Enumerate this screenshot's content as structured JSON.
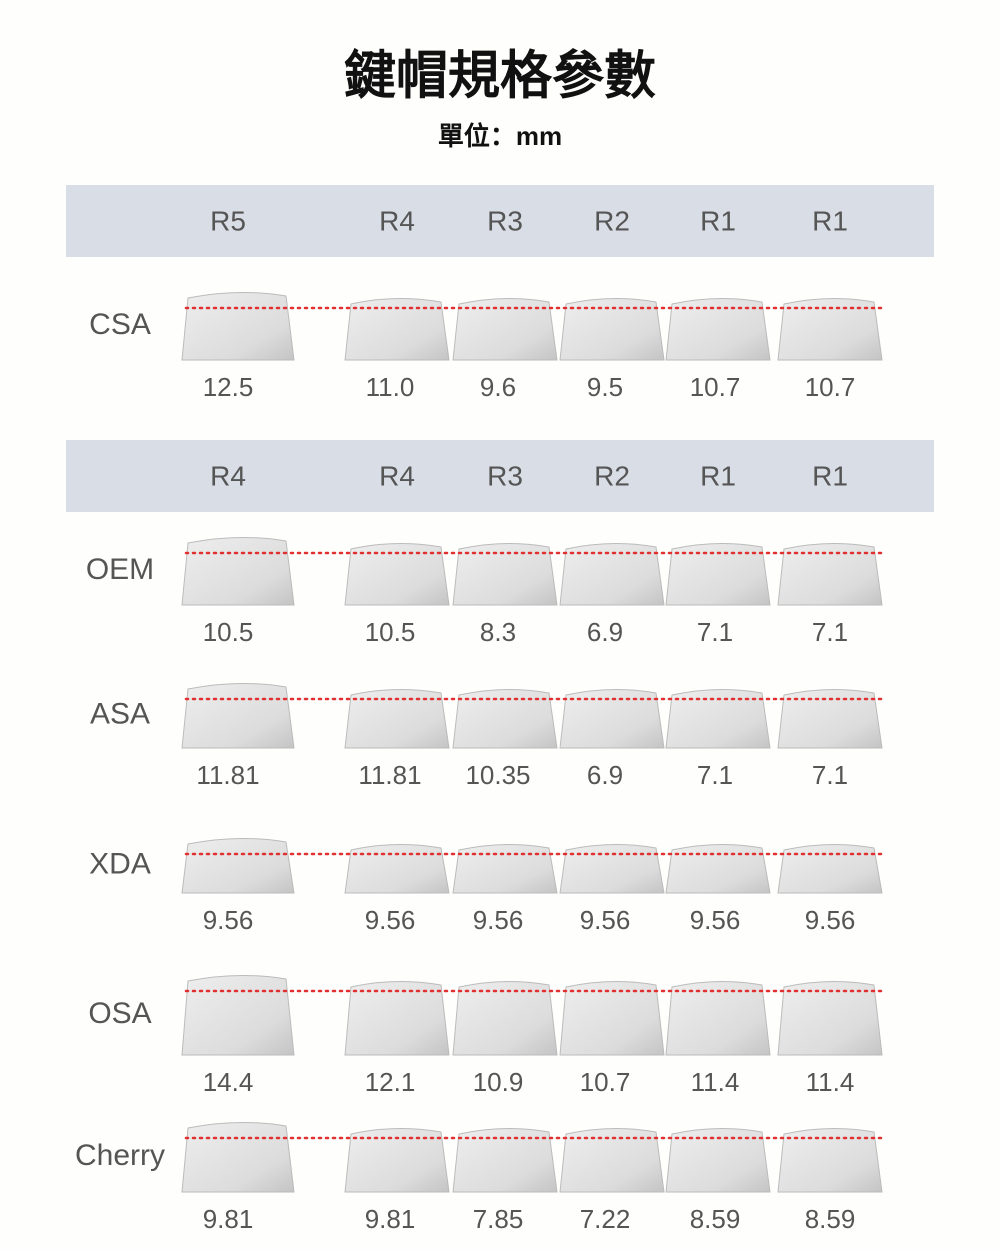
{
  "header": {
    "title": "鍵帽規格參數",
    "subtitle": "單位：mm"
  },
  "table": {
    "sections": [
      {
        "rows_label": [
          "R5",
          "R4",
          "R3",
          "R2",
          "R1",
          "R1"
        ],
        "profiles": [
          {
            "name": "CSA",
            "values": [
              "12.5",
              "11.0",
              "9.6",
              "9.5",
              "10.7",
              "10.7"
            ]
          }
        ]
      },
      {
        "rows_label": [
          "R4",
          "R4",
          "R3",
          "R2",
          "R1",
          "R1"
        ],
        "profiles": [
          {
            "name": "OEM",
            "values": [
              "10.5",
              "10.5",
              "8.3",
              "6.9",
              "7.1",
              "7.1"
            ]
          },
          {
            "name": "ASA",
            "values": [
              "11.81",
              "11.81",
              "10.35",
              "6.9",
              "7.1",
              "7.1"
            ]
          },
          {
            "name": "XDA",
            "values": [
              "9.56",
              "9.56",
              "9.56",
              "9.56",
              "9.56",
              "9.56"
            ]
          },
          {
            "name": "OSA",
            "values": [
              "14.4",
              "12.1",
              "10.9",
              "10.7",
              "11.4",
              "11.4"
            ]
          },
          {
            "name": "Cherry",
            "values": [
              "9.81",
              "9.81",
              "7.85",
              "7.22",
              "8.59",
              "8.59"
            ]
          }
        ]
      }
    ]
  }
}
